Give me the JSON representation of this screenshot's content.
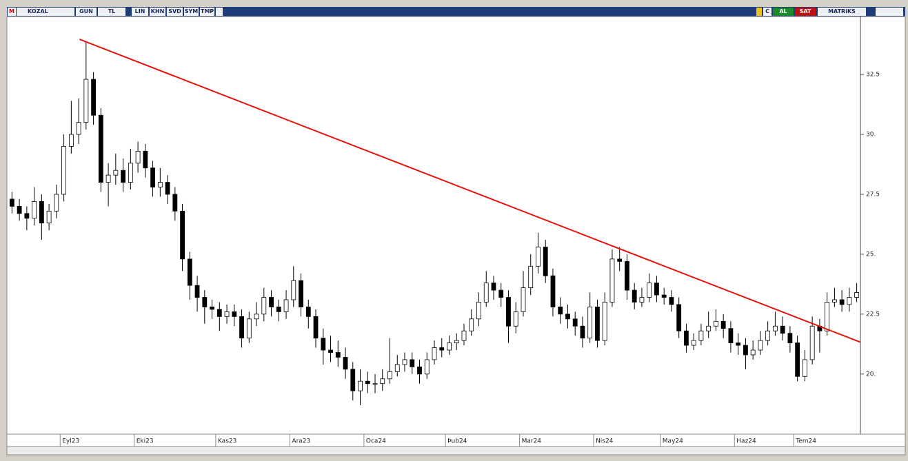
{
  "toolbar": {
    "logo": "M",
    "symbol": "KOZAL",
    "buttons": [
      "GUN",
      "TL",
      "LIN",
      "KHN",
      "SVD",
      "SYM",
      "TMP"
    ],
    "right": [
      "C",
      "AL",
      "SAT"
    ],
    "brand": "MATRiKS"
  },
  "chart_data": {
    "type": "candlestick",
    "categories": [
      null,
      null,
      null,
      null,
      null,
      null,
      null,
      "Eyl23",
      null,
      null,
      null,
      null,
      null,
      null,
      null,
      null,
      null,
      "Eki23",
      null,
      null,
      null,
      null,
      null,
      null,
      null,
      null,
      null,
      null,
      "Kas23",
      null,
      null,
      null,
      null,
      null,
      null,
      null,
      null,
      null,
      "Ara23",
      null,
      null,
      null,
      null,
      null,
      null,
      null,
      null,
      null,
      "Oca24",
      null,
      null,
      null,
      null,
      null,
      null,
      null,
      null,
      null,
      null,
      "Þub24",
      null,
      null,
      null,
      null,
      null,
      null,
      null,
      null,
      null,
      "Mar24",
      null,
      null,
      null,
      null,
      null,
      null,
      null,
      null,
      null,
      "Nis24",
      null,
      null,
      null,
      null,
      null,
      null,
      null,
      null,
      "May24",
      null,
      null,
      null,
      null,
      null,
      null,
      null,
      null,
      null,
      "Haz24",
      null,
      null,
      null,
      null,
      null,
      null,
      null,
      "Tem24",
      null,
      null,
      null,
      null,
      null,
      null,
      null,
      null
    ],
    "open": [
      27.3,
      27.0,
      26.7,
      26.5,
      27.2,
      26.3,
      26.8,
      27.5,
      29.5,
      30.0,
      30.5,
      32.3,
      30.8,
      28.0,
      28.3,
      28.5,
      28.0,
      28.8,
      29.3,
      28.6,
      27.8,
      28.0,
      27.5,
      26.8,
      24.8,
      23.7,
      23.2,
      22.8,
      22.7,
      22.4,
      22.6,
      22.4,
      21.5,
      22.3,
      22.5,
      23.2,
      22.8,
      22.6,
      23.1,
      23.9,
      22.8,
      22.4,
      21.5,
      21.0,
      20.9,
      20.7,
      20.2,
      19.3,
      19.7,
      19.6,
      19.6,
      19.8,
      20.1,
      20.4,
      20.6,
      20.3,
      20.0,
      20.6,
      21.1,
      21.0,
      21.3,
      21.4,
      21.8,
      22.3,
      23.0,
      23.8,
      23.5,
      23.2,
      22.0,
      22.6,
      23.6,
      24.5,
      25.3,
      24.1,
      22.8,
      22.5,
      22.3,
      22.0,
      21.5,
      22.8,
      21.4,
      23.0,
      24.8,
      24.7,
      23.5,
      23.0,
      23.2,
      23.8,
      23.3,
      23.2,
      22.9,
      21.8,
      21.2,
      21.4,
      21.8,
      22.0,
      22.2,
      21.9,
      21.3,
      21.2,
      20.8,
      21.0,
      21.4,
      21.8,
      22.0,
      21.7,
      21.3,
      19.9,
      20.6,
      22.0,
      21.8,
      23.0,
      23.1,
      22.9,
      23.2
    ],
    "high": [
      27.6,
      27.3,
      27.0,
      27.8,
      27.5,
      27.1,
      27.9,
      30.0,
      31.4,
      31.5,
      33.9,
      32.6,
      31.1,
      28.8,
      29.2,
      29.0,
      29.4,
      29.7,
      29.6,
      28.9,
      28.6,
      28.3,
      27.8,
      27.1,
      25.1,
      24.1,
      23.5,
      23.1,
      23.0,
      22.9,
      22.9,
      22.7,
      22.6,
      23.0,
      23.6,
      23.5,
      23.1,
      23.5,
      24.5,
      24.2,
      23.1,
      22.7,
      21.9,
      21.6,
      21.4,
      21.1,
      20.5,
      20.2,
      20.1,
      20.0,
      20.2,
      21.5,
      20.8,
      20.9,
      20.9,
      20.6,
      20.9,
      21.4,
      21.5,
      21.6,
      21.7,
      22.1,
      22.7,
      23.4,
      24.3,
      24.1,
      23.8,
      23.5,
      23.0,
      24.3,
      25.0,
      25.9,
      25.6,
      24.4,
      23.2,
      22.9,
      22.6,
      22.4,
      23.4,
      23.1,
      23.4,
      25.2,
      25.3,
      25.0,
      23.8,
      23.6,
      24.2,
      24.1,
      23.6,
      23.5,
      23.2,
      22.1,
      21.7,
      22.1,
      22.6,
      22.7,
      22.5,
      22.2,
      21.7,
      21.5,
      21.4,
      21.8,
      22.2,
      22.6,
      22.4,
      22.0,
      21.6,
      21.0,
      22.4,
      22.3,
      23.4,
      23.6,
      23.5,
      23.6,
      23.8
    ],
    "low": [
      26.7,
      26.4,
      26.0,
      26.2,
      25.6,
      26.0,
      26.5,
      27.2,
      29.2,
      29.6,
      30.2,
      30.4,
      27.6,
      27.0,
      27.9,
      27.6,
      27.7,
      28.4,
      28.2,
      27.4,
      27.4,
      27.1,
      26.4,
      24.3,
      23.1,
      22.6,
      22.1,
      22.3,
      21.8,
      22.1,
      22.0,
      21.1,
      21.3,
      22.0,
      22.2,
      22.4,
      22.2,
      22.3,
      22.8,
      22.4,
      21.9,
      21.1,
      20.4,
      20.5,
      20.3,
      19.8,
      18.9,
      18.7,
      19.2,
      19.2,
      19.3,
      19.6,
      19.9,
      20.1,
      20.0,
      19.6,
      19.8,
      20.4,
      20.7,
      20.8,
      21.0,
      21.2,
      21.6,
      22.0,
      22.8,
      23.1,
      22.8,
      21.3,
      21.7,
      22.4,
      23.3,
      24.2,
      23.8,
      22.4,
      22.1,
      21.9,
      21.6,
      21.1,
      21.3,
      21.1,
      21.2,
      22.8,
      24.3,
      23.1,
      22.7,
      22.8,
      23.0,
      23.0,
      22.9,
      22.6,
      21.5,
      20.9,
      21.0,
      21.2,
      21.5,
      21.8,
      21.5,
      20.9,
      20.8,
      20.2,
      20.6,
      20.8,
      21.2,
      21.6,
      21.4,
      20.9,
      19.7,
      19.7,
      20.4,
      20.9,
      21.6,
      22.8,
      22.6,
      22.6,
      23.0
    ],
    "close": [
      27.0,
      26.7,
      26.5,
      27.2,
      26.3,
      26.8,
      27.5,
      29.5,
      30.0,
      30.5,
      32.3,
      30.8,
      28.0,
      28.3,
      28.5,
      28.0,
      28.8,
      29.3,
      28.6,
      27.8,
      28.0,
      27.5,
      26.8,
      24.8,
      23.7,
      23.2,
      22.8,
      22.7,
      22.4,
      22.6,
      22.4,
      21.5,
      22.3,
      22.5,
      23.2,
      22.8,
      22.6,
      23.1,
      23.9,
      22.8,
      22.4,
      21.5,
      21.0,
      20.9,
      20.7,
      20.2,
      19.3,
      19.7,
      19.6,
      19.6,
      19.8,
      20.1,
      20.4,
      20.6,
      20.3,
      20.0,
      20.6,
      21.1,
      21.0,
      21.3,
      21.4,
      21.8,
      22.3,
      23.0,
      23.8,
      23.5,
      23.2,
      22.0,
      22.6,
      23.6,
      24.5,
      25.3,
      24.1,
      22.8,
      22.5,
      22.3,
      22.0,
      21.5,
      22.8,
      21.4,
      23.0,
      24.8,
      24.7,
      23.5,
      23.0,
      23.2,
      23.8,
      23.3,
      23.2,
      22.9,
      21.8,
      21.2,
      21.4,
      21.8,
      22.0,
      22.2,
      21.9,
      21.3,
      21.2,
      20.8,
      21.0,
      21.4,
      21.8,
      22.0,
      21.7,
      21.3,
      19.9,
      20.6,
      22.0,
      21.8,
      23.0,
      23.1,
      22.9,
      23.2,
      23.4
    ],
    "up_color": "#ffffff",
    "down_color": "#000000",
    "ylim": [
      17.55,
      34.89
    ],
    "yticks": [
      {
        "value": 20,
        "label": "20."
      },
      22.5,
      {
        "value": 25,
        "label": "25."
      },
      27.5,
      {
        "value": 30,
        "label": "30."
      },
      32.5
    ],
    "trendline": {
      "x": [
        9.6,
        115
      ],
      "y": [
        33.97,
        21.33
      ],
      "color": "#e8120c"
    }
  }
}
